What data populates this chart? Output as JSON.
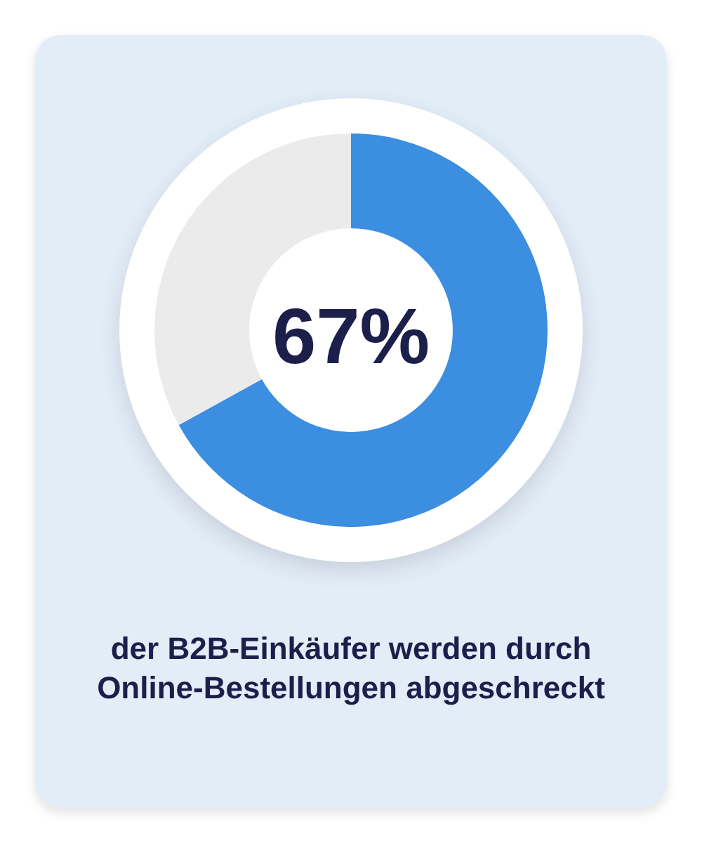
{
  "chart_data": {
    "type": "donut",
    "categories": [
      null,
      null
    ],
    "values": [
      67,
      33
    ],
    "colors": [
      "#3b8ee0",
      "#ebebeb"
    ],
    "value_labels": [
      "67%",
      null
    ],
    "annotations": [
      "der B2B-Einkäufer werden durch Online-Bestellungen abgeschreckt"
    ]
  }
}
